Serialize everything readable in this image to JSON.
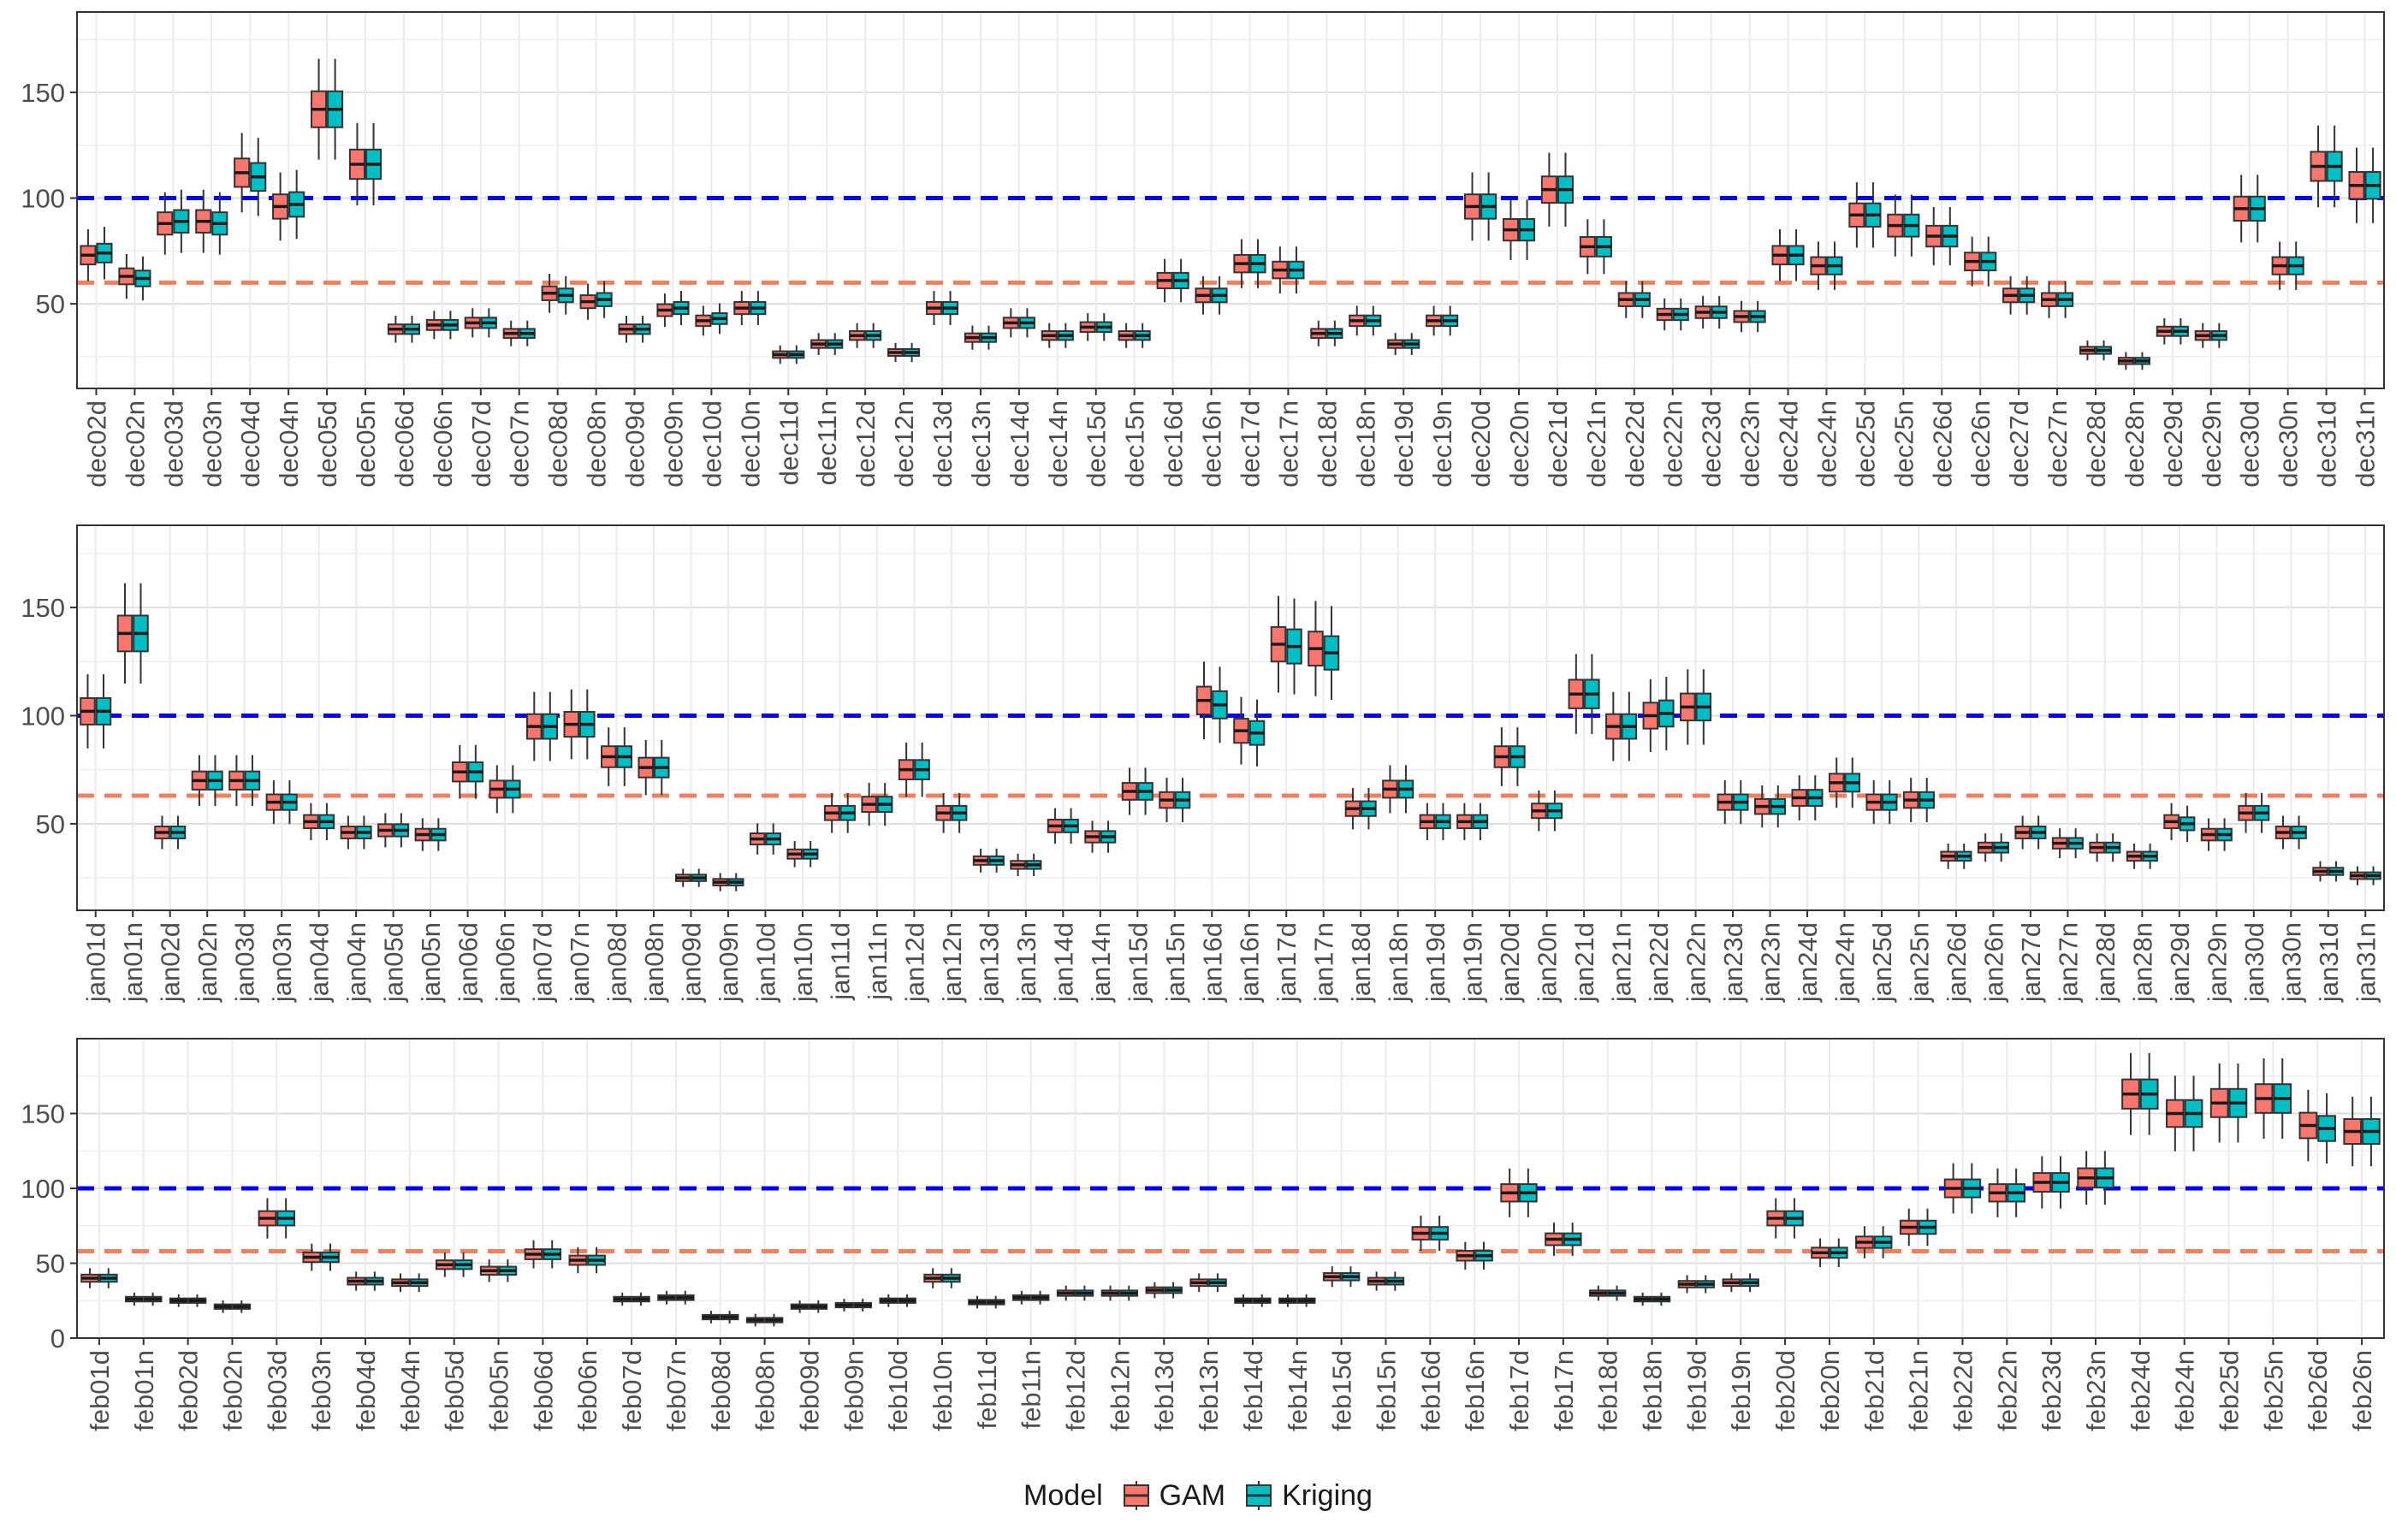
{
  "colors": {
    "gam": "#F8766D",
    "kriging": "#00BFC4",
    "ref100": "#0000FF",
    "refLow": "#F08060",
    "panelBorder": "#333333",
    "grid": "#EBEBEB"
  },
  "legend": {
    "title": "Model",
    "items": [
      "GAM",
      "Kriging"
    ]
  },
  "chart_data": [
    {
      "type": "box",
      "ylim": [
        10,
        188
      ],
      "yticks": [
        50,
        100,
        150
      ],
      "tick_labels": [
        "50",
        "100",
        "150"
      ],
      "reference_lines": {
        "blue": 100,
        "orange": 60
      },
      "categories": [
        "dec02d",
        "dec02n",
        "dec03d",
        "dec03n",
        "dec04d",
        "dec04n",
        "dec05d",
        "dec05n",
        "dec06d",
        "dec06n",
        "dec07d",
        "dec07n",
        "dec08d",
        "dec08n",
        "dec09d",
        "dec09n",
        "dec10d",
        "dec10n",
        "dec11d",
        "dec11n",
        "dec12d",
        "dec12n",
        "dec13d",
        "dec13n",
        "dec14d",
        "dec14n",
        "dec15d",
        "dec15n",
        "dec16d",
        "dec16n",
        "dec17d",
        "dec17n",
        "dec18d",
        "dec18n",
        "dec19d",
        "dec19n",
        "dec20d",
        "dec20n",
        "dec21d",
        "dec21n",
        "dec22d",
        "dec22n",
        "dec23d",
        "dec23n",
        "dec24d",
        "dec24n",
        "dec25d",
        "dec25n",
        "dec26d",
        "dec26n",
        "dec27d",
        "dec27n",
        "dec28d",
        "dec28n",
        "dec29d",
        "dec29n",
        "dec30d",
        "dec30n",
        "dec31d",
        "dec31n"
      ],
      "series": [
        {
          "name": "GAM",
          "medians": [
            73,
            63,
            88,
            89,
            112,
            96,
            142,
            116,
            38,
            40,
            41,
            36,
            55,
            51,
            38,
            47,
            42,
            48,
            26,
            31,
            35,
            27,
            48,
            34,
            41,
            35,
            39,
            35,
            61,
            54,
            69,
            66,
            36,
            42,
            31,
            42,
            96,
            85,
            104,
            77,
            52,
            45,
            46,
            44,
            73,
            68,
            92,
            87,
            82,
            70,
            54,
            52,
            28,
            23,
            37,
            35,
            95,
            68,
            115,
            106
          ]
        },
        {
          "name": "Kriging",
          "medians": [
            74,
            62,
            89,
            88,
            110,
            97,
            142,
            116,
            38,
            40,
            41,
            36,
            54,
            52,
            38,
            48,
            43,
            48,
            26,
            31,
            35,
            27,
            48,
            34,
            41,
            35,
            39,
            35,
            61,
            54,
            69,
            66,
            36,
            42,
            31,
            42,
            96,
            85,
            104,
            77,
            52,
            45,
            46,
            44,
            73,
            68,
            92,
            87,
            82,
            70,
            54,
            52,
            28,
            23,
            37,
            35,
            95,
            68,
            115,
            106
          ]
        }
      ]
    },
    {
      "type": "box",
      "ylim": [
        10,
        188
      ],
      "yticks": [
        50,
        100,
        150
      ],
      "tick_labels": [
        "50",
        "100",
        "150"
      ],
      "reference_lines": {
        "blue": 100,
        "orange": 63
      },
      "categories": [
        "jan01d",
        "jan01n",
        "jan02d",
        "jan02n",
        "jan03d",
        "jan03n",
        "jan04d",
        "jan04n",
        "jan05d",
        "jan05n",
        "jan06d",
        "jan06n",
        "jan07d",
        "jan07n",
        "jan08d",
        "jan08n",
        "jan09d",
        "jan09n",
        "jan10d",
        "jan10n",
        "jan11d",
        "jan11n",
        "jan12d",
        "jan12n",
        "jan13d",
        "jan13n",
        "jan14d",
        "jan14n",
        "jan15d",
        "jan15n",
        "jan16d",
        "jan16n",
        "jan17d",
        "jan17n",
        "jan18d",
        "jan18n",
        "jan19d",
        "jan19n",
        "jan20d",
        "jan20n",
        "jan21d",
        "jan21n",
        "jan22d",
        "jan22n",
        "jan23d",
        "jan23n",
        "jan24d",
        "jan24n",
        "jan25d",
        "jan25n",
        "jan26d",
        "jan26n",
        "jan27d",
        "jan27n",
        "jan28d",
        "jan28n",
        "jan29d",
        "jan29n",
        "jan30d",
        "jan30n",
        "jan31d",
        "jan31n"
      ],
      "series": [
        {
          "name": "GAM",
          "medians": [
            102,
            138,
            46,
            70,
            70,
            60,
            51,
            46,
            47,
            45,
            74,
            66,
            95,
            96,
            81,
            76,
            25,
            23,
            43,
            36,
            55,
            59,
            75,
            55,
            33,
            31,
            49,
            44,
            65,
            61,
            107,
            93,
            133,
            131,
            57,
            66,
            51,
            51,
            81,
            56,
            110,
            95,
            100,
            104,
            60,
            58,
            62,
            69,
            60,
            61,
            35,
            39,
            46,
            41,
            39,
            35,
            51,
            45,
            55,
            46,
            28,
            26
          ]
        },
        {
          "name": "Kriging",
          "medians": [
            102,
            138,
            46,
            70,
            70,
            60,
            51,
            46,
            47,
            45,
            74,
            66,
            95,
            96,
            81,
            76,
            25,
            23,
            43,
            36,
            55,
            59,
            75,
            55,
            33,
            31,
            49,
            44,
            65,
            61,
            105,
            92,
            132,
            129,
            57,
            66,
            51,
            51,
            81,
            56,
            110,
            95,
            101,
            104,
            60,
            58,
            62,
            69,
            60,
            61,
            35,
            39,
            46,
            41,
            39,
            35,
            50,
            45,
            55,
            46,
            28,
            26
          ]
        }
      ]
    },
    {
      "type": "box",
      "ylim": [
        0,
        200
      ],
      "yticks": [
        0,
        50,
        100,
        150
      ],
      "tick_labels": [
        "0",
        "50",
        "100",
        "150"
      ],
      "reference_lines": {
        "blue": 100,
        "orange": 58
      },
      "categories": [
        "feb01d",
        "feb01n",
        "feb02d",
        "feb02n",
        "feb03d",
        "feb03n",
        "feb04d",
        "feb04n",
        "feb05d",
        "feb05n",
        "feb06d",
        "feb06n",
        "feb07d",
        "feb07n",
        "feb08d",
        "feb08n",
        "feb09d",
        "feb09n",
        "feb10d",
        "feb10n",
        "feb11d",
        "feb11n",
        "feb12d",
        "feb12n",
        "feb13d",
        "feb13n",
        "feb14d",
        "feb14n",
        "feb15d",
        "feb15n",
        "feb16d",
        "feb16n",
        "feb17d",
        "feb17n",
        "feb18d",
        "feb18n",
        "feb19d",
        "feb19n",
        "feb20d",
        "feb20n",
        "feb21d",
        "feb21n",
        "feb22d",
        "feb22n",
        "feb23d",
        "feb23n",
        "feb24d",
        "feb24n",
        "feb25d",
        "feb25n",
        "feb26d",
        "feb26n"
      ],
      "series": [
        {
          "name": "GAM",
          "medians": [
            40,
            26,
            25,
            21,
            80,
            54,
            38,
            37,
            49,
            45,
            56,
            52,
            26,
            27,
            14,
            12,
            21,
            22,
            25,
            40,
            24,
            27,
            30,
            30,
            32,
            37,
            25,
            25,
            41,
            38,
            70,
            55,
            97,
            66,
            30,
            26,
            36,
            37,
            80,
            57,
            64,
            74,
            100,
            97,
            104,
            107,
            163,
            150,
            157,
            160,
            142,
            138
          ]
        },
        {
          "name": "Kriging",
          "medians": [
            40,
            26,
            25,
            21,
            80,
            54,
            38,
            37,
            49,
            45,
            56,
            52,
            26,
            27,
            14,
            12,
            21,
            22,
            25,
            40,
            24,
            27,
            30,
            30,
            32,
            37,
            25,
            25,
            41,
            38,
            70,
            55,
            97,
            66,
            30,
            26,
            36,
            37,
            80,
            57,
            64,
            74,
            100,
            97,
            104,
            107,
            163,
            150,
            157,
            160,
            140,
            138
          ]
        }
      ]
    }
  ]
}
